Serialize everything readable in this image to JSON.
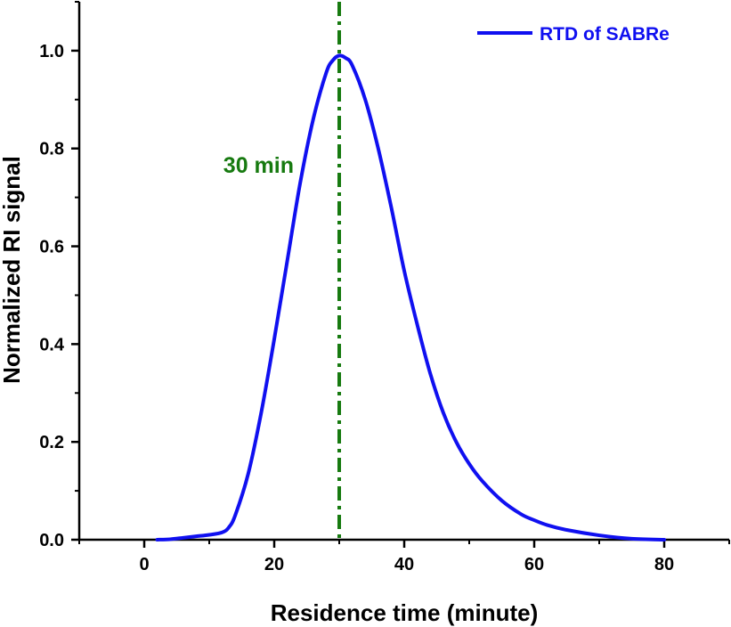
{
  "chart_data": {
    "type": "line",
    "xlabel": "Residence time (minute)",
    "ylabel": "Normalized RI signal",
    "xlim": [
      -10,
      90
    ],
    "ylim": [
      0,
      1.1
    ],
    "x_ticks": [
      0,
      20,
      40,
      60,
      80
    ],
    "x_tick_labels": [
      "0",
      "20",
      "40",
      "60",
      "80"
    ],
    "y_ticks": [
      0,
      0.2,
      0.4,
      0.6,
      0.8,
      1.0
    ],
    "y_tick_labels": [
      "0.0",
      "0.2",
      "0.4",
      "0.6",
      "0.8",
      "1.0"
    ],
    "grid": false,
    "legend": {
      "position": "top-right"
    },
    "series": [
      {
        "name": "RTD of SABRe",
        "color": "#1010f0",
        "x": [
          2,
          4,
          6,
          8,
          10,
          12,
          13,
          14,
          16,
          18,
          20,
          22,
          24,
          26,
          28,
          29,
          30,
          31,
          32,
          34,
          36,
          38,
          40,
          42,
          44,
          46,
          48,
          50,
          52,
          55,
          58,
          60,
          62,
          65,
          70,
          75,
          80
        ],
        "y": [
          0.0,
          0.001,
          0.004,
          0.007,
          0.01,
          0.015,
          0.025,
          0.05,
          0.135,
          0.26,
          0.41,
          0.57,
          0.73,
          0.86,
          0.955,
          0.98,
          0.99,
          0.985,
          0.97,
          0.9,
          0.8,
          0.68,
          0.55,
          0.44,
          0.34,
          0.26,
          0.2,
          0.155,
          0.12,
          0.08,
          0.052,
          0.04,
          0.03,
          0.02,
          0.009,
          0.002,
          0.0
        ]
      }
    ],
    "annotations": [
      {
        "type": "vline",
        "x": 30,
        "style": "dash-dot",
        "color": "#177a10",
        "label": "30 min"
      }
    ]
  }
}
